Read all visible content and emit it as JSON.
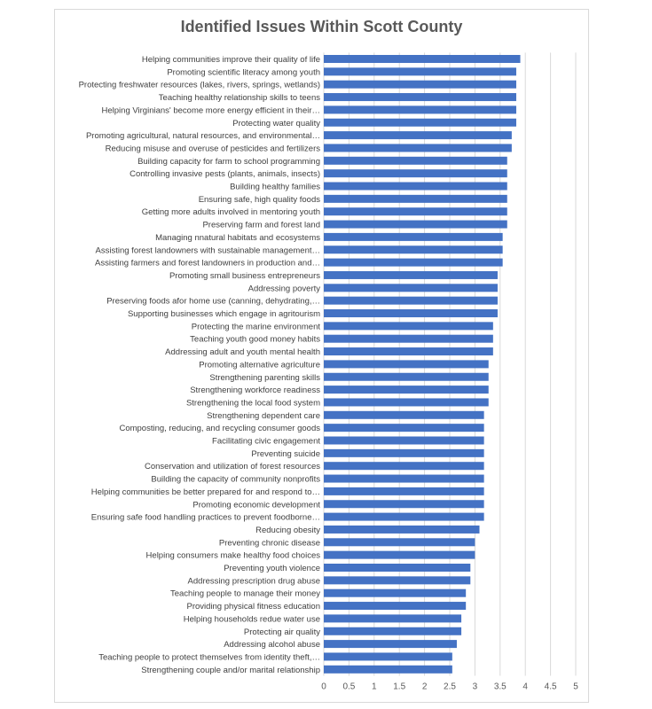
{
  "chart_data": {
    "type": "bar",
    "orientation": "horizontal",
    "title": "Identified Issues Within Scott County",
    "xlabel": "",
    "ylabel": "",
    "xlim": [
      0,
      5
    ],
    "ticks": [
      "0",
      "0.5",
      "1",
      "1.5",
      "2",
      "2.5",
      "3",
      "3.5",
      "4",
      "4.5",
      "5"
    ],
    "grid": true,
    "bar_color": "#4472c4",
    "categories": [
      "Helping communities improve their quality of life",
      "Promoting scientific literacy among youth",
      "Protecting freshwater resources (lakes, rivers, springs, wetlands)",
      "Teaching healthy relationship skills to teens",
      "Helping Virginians' become more energy efficient in their…",
      "Protecting water quality",
      "Promoting agricultural, natural resources, and environmental…",
      "Reducing misuse and overuse of pesticides and fertilizers",
      "Building capacity for farm to school programming",
      "Controlling invasive pests (plants, animals, insects)",
      "Building healthy families",
      "Ensuring safe, high quality foods",
      "Getting more adults involved in mentoring youth",
      "Preserving farm and forest land",
      "Managing nnatural habitats and ecosystems",
      "Assisting forest landowners with sustainable management…",
      "Assisting farmers and forest landowners in production and…",
      "Promoting small business entrepreneurs",
      "Addressing poverty",
      "Preserving foods afor home use (canning, dehydrating,…",
      "Supporting businesses which engage in agritourism",
      "Protecting the marine environment",
      "Teaching youth good money habits",
      "Addressing adult and youth mental health",
      "Promoting alternative agriculture",
      "Strengthening parenting skills",
      "Strengthening workforce readiness",
      "Strengthening the local food system",
      "Strengthening dependent care",
      "Composting, reducing, and recycling consumer goods",
      "Facilitating civic engagement",
      "Preventing suicide",
      "Conservation and utilization of forest resources",
      "Building the capacity of community nonprofits",
      "Helping communities be better prepared for and respond to…",
      "Promoting economic development",
      "Ensuring safe food handling practices to prevent foodborne…",
      "Reducing obesity",
      "Preventing chronic disease",
      "Helping consumers make healthy food choices",
      "Preventing youth violence",
      "Addressing prescription drug abuse",
      "Teaching people to manage their money",
      "Providing physical fitness education",
      "Helping households redue water use",
      "Protecting air quality",
      "Addressing alcohol abuse",
      "Teaching people to protect themselves from identity theft,…",
      "Strengthening couple and/or marital relationship"
    ],
    "values": [
      3.9,
      3.82,
      3.82,
      3.82,
      3.82,
      3.82,
      3.73,
      3.73,
      3.64,
      3.64,
      3.64,
      3.64,
      3.64,
      3.64,
      3.55,
      3.55,
      3.55,
      3.45,
      3.45,
      3.45,
      3.45,
      3.36,
      3.36,
      3.36,
      3.27,
      3.27,
      3.27,
      3.27,
      3.18,
      3.18,
      3.18,
      3.18,
      3.18,
      3.18,
      3.18,
      3.18,
      3.18,
      3.09,
      3.0,
      3.0,
      2.91,
      2.91,
      2.82,
      2.82,
      2.73,
      2.73,
      2.64,
      2.55,
      2.55
    ]
  }
}
